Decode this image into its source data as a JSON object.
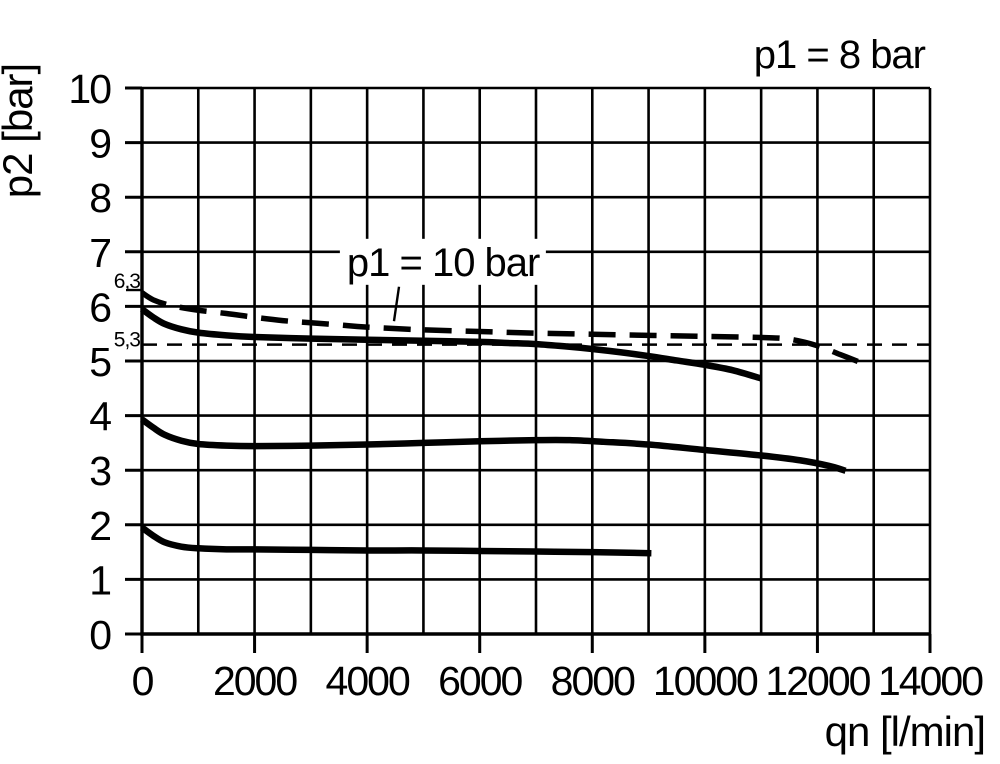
{
  "colors": {
    "ink": "#000000",
    "background": "#ffffff"
  },
  "chart_data": {
    "type": "line",
    "corner_annotation": "p1 = 8 bar",
    "xlabel": "qn [l/min]",
    "ylabel": "p2 [bar]",
    "xlim": [
      0,
      14000
    ],
    "ylim": [
      0,
      10
    ],
    "x_major_ticks": [
      0,
      2000,
      4000,
      6000,
      8000,
      10000,
      12000,
      14000
    ],
    "x_minor_step": 1000,
    "y_major_ticks": [
      0,
      1,
      2,
      3,
      4,
      5,
      6,
      7,
      8,
      9,
      10
    ],
    "grid": "on",
    "legend_position": "none",
    "reference_marks": [
      {
        "label": "6,3",
        "value": 6.3,
        "kind": "axis-tick"
      },
      {
        "label": "5,3",
        "value": 5.3,
        "kind": "thin-dashed-horizontal-line",
        "x_start": 0,
        "x_end": 14000
      }
    ],
    "curve_annotation": {
      "text": "p1 = 10 bar",
      "text_anchor_x": 3640,
      "text_baseline_y": 6.56,
      "leader_from": [
        4566,
        6.36
      ],
      "leader_to": [
        4477,
        5.73
      ]
    },
    "series": [
      {
        "id": "p1-10-bar-curve",
        "label": "p1 = 10 bar",
        "style": "thick-dashed",
        "points": [
          [
            0,
            6.25
          ],
          [
            200,
            6.12
          ],
          [
            500,
            6.02
          ],
          [
            1000,
            5.93
          ],
          [
            1500,
            5.87
          ],
          [
            2000,
            5.8
          ],
          [
            2500,
            5.74
          ],
          [
            3000,
            5.7
          ],
          [
            3500,
            5.66
          ],
          [
            4000,
            5.62
          ],
          [
            5000,
            5.57
          ],
          [
            6000,
            5.54
          ],
          [
            7000,
            5.51
          ],
          [
            8000,
            5.49
          ],
          [
            9000,
            5.47
          ],
          [
            10000,
            5.45
          ],
          [
            11000,
            5.43
          ],
          [
            11500,
            5.4
          ],
          [
            12000,
            5.28
          ],
          [
            12400,
            5.12
          ],
          [
            12750,
            4.98
          ]
        ]
      },
      {
        "id": "p1-8-bar-upper-curve",
        "label": "",
        "style": "thick-solid",
        "points": [
          [
            0,
            5.95
          ],
          [
            200,
            5.8
          ],
          [
            400,
            5.68
          ],
          [
            700,
            5.58
          ],
          [
            1000,
            5.52
          ],
          [
            1500,
            5.47
          ],
          [
            2000,
            5.44
          ],
          [
            3000,
            5.41
          ],
          [
            4000,
            5.39
          ],
          [
            5000,
            5.37
          ],
          [
            6000,
            5.35
          ],
          [
            6500,
            5.33
          ],
          [
            7000,
            5.31
          ],
          [
            7500,
            5.27
          ],
          [
            8000,
            5.22
          ],
          [
            8500,
            5.16
          ],
          [
            9000,
            5.09
          ],
          [
            9500,
            5.01
          ],
          [
            10000,
            4.93
          ],
          [
            10500,
            4.83
          ],
          [
            11000,
            4.68
          ]
        ]
      },
      {
        "id": "middle-curve",
        "label": "",
        "style": "thick-solid",
        "points": [
          [
            0,
            3.93
          ],
          [
            200,
            3.78
          ],
          [
            400,
            3.65
          ],
          [
            700,
            3.54
          ],
          [
            1000,
            3.48
          ],
          [
            1500,
            3.45
          ],
          [
            2000,
            3.44
          ],
          [
            3000,
            3.45
          ],
          [
            4000,
            3.47
          ],
          [
            5000,
            3.5
          ],
          [
            6000,
            3.53
          ],
          [
            7000,
            3.55
          ],
          [
            7600,
            3.55
          ],
          [
            8200,
            3.52
          ],
          [
            9000,
            3.47
          ],
          [
            10000,
            3.37
          ],
          [
            11000,
            3.27
          ],
          [
            11700,
            3.18
          ],
          [
            12200,
            3.08
          ],
          [
            12500,
            2.99
          ]
        ]
      },
      {
        "id": "lower-curve",
        "label": "",
        "style": "thick-solid",
        "points": [
          [
            0,
            1.95
          ],
          [
            200,
            1.8
          ],
          [
            400,
            1.68
          ],
          [
            700,
            1.6
          ],
          [
            1000,
            1.57
          ],
          [
            1500,
            1.55
          ],
          [
            2000,
            1.55
          ],
          [
            3000,
            1.54
          ],
          [
            4000,
            1.53
          ],
          [
            5000,
            1.53
          ],
          [
            6000,
            1.52
          ],
          [
            7000,
            1.51
          ],
          [
            8000,
            1.5
          ],
          [
            9050,
            1.48
          ]
        ]
      }
    ]
  }
}
